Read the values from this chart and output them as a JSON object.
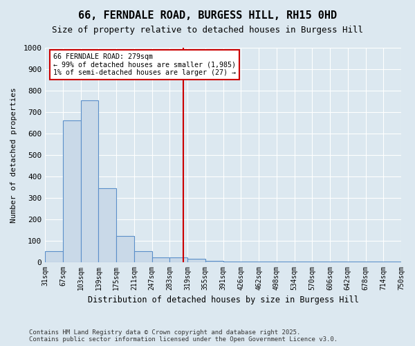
{
  "title": "66, FERNDALE ROAD, BURGESS HILL, RH15 0HD",
  "subtitle": "Size of property relative to detached houses in Burgess Hill",
  "xlabel": "Distribution of detached houses by size in Burgess Hill",
  "ylabel": "Number of detached properties",
  "footer_line1": "Contains HM Land Registry data © Crown copyright and database right 2025.",
  "footer_line2": "Contains public sector information licensed under the Open Government Licence v3.0.",
  "tick_labels": [
    "31sqm",
    "67sqm",
    "103sqm",
    "139sqm",
    "175sqm",
    "211sqm",
    "247sqm",
    "283sqm",
    "319sqm",
    "355sqm",
    "391sqm",
    "426sqm",
    "462sqm",
    "498sqm",
    "534sqm",
    "570sqm",
    "606sqm",
    "642sqm",
    "678sqm",
    "714sqm",
    "750sqm"
  ],
  "bar_values": [
    50,
    660,
    755,
    345,
    120,
    50,
    20,
    20,
    15,
    5,
    2,
    2,
    2,
    1,
    1,
    1,
    1,
    1,
    1,
    1
  ],
  "ylim": [
    0,
    1000
  ],
  "yticks": [
    0,
    100,
    200,
    300,
    400,
    500,
    600,
    700,
    800,
    900,
    1000
  ],
  "bar_color": "#c9d9e8",
  "bar_edge_color": "#5b8fc9",
  "property_line_x": 7.75,
  "property_line_color": "#cc0000",
  "annotation_text": "66 FERNDALE ROAD: 279sqm\n← 99% of detached houses are smaller (1,985)\n1% of semi-detached houses are larger (27) →",
  "annotation_box_color": "#cc0000",
  "background_color": "#dce8f0",
  "plot_bg_color": "#dce8f0",
  "grid_color": "#ffffff"
}
